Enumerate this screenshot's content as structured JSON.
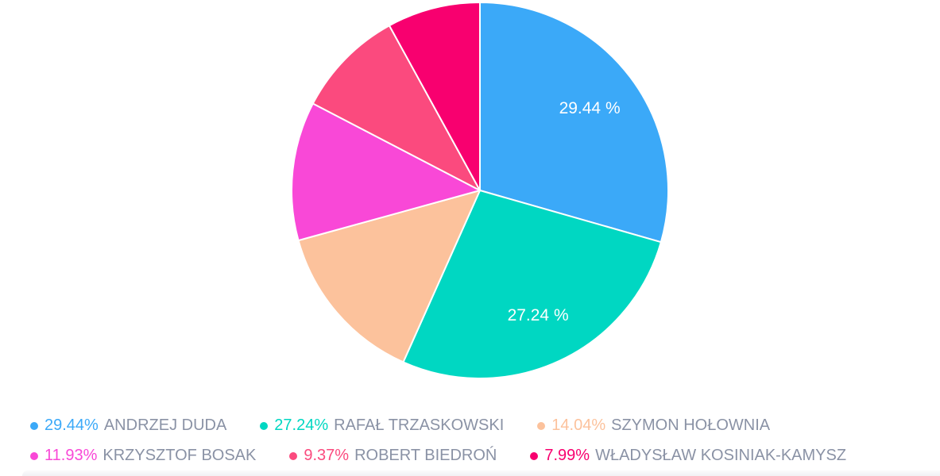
{
  "chart_data": {
    "type": "pie",
    "title": "",
    "units": "% of votes",
    "direction": "clockwise",
    "start_angle_deg": 0,
    "legend_position": "bottom",
    "grid": false,
    "slice_label_format": "{value} %",
    "legend_label_format": "{value}% {name}",
    "slice_label_min_pct": 20,
    "slice_label_color": "#ffffff",
    "legend_name_color": "#8A92A5",
    "background_color": "#ffffff",
    "slice_border_color": "#ffffff",
    "slices": [
      {
        "name": "ANDRZEJ DUDA",
        "value": 29.44,
        "color": "#3BA9F8"
      },
      {
        "name": "RAFAŁ TRZASKOWSKI",
        "value": 27.24,
        "color": "#00D7C2"
      },
      {
        "name": "SZYMON HOŁOWNIA",
        "value": 14.04,
        "color": "#FCC29C"
      },
      {
        "name": "KRZYSZTOF BOSAK",
        "value": 11.93,
        "color": "#F948D7"
      },
      {
        "name": "ROBERT BIEDROŃ",
        "value": 9.37,
        "color": "#FB4A7E"
      },
      {
        "name": "WŁADYSŁAW KOSINIAK-KAMYSZ",
        "value": 7.99,
        "color": "#F8006F"
      }
    ],
    "visible_slice_labels": [
      "29.44 %",
      "27.24 %"
    ]
  }
}
